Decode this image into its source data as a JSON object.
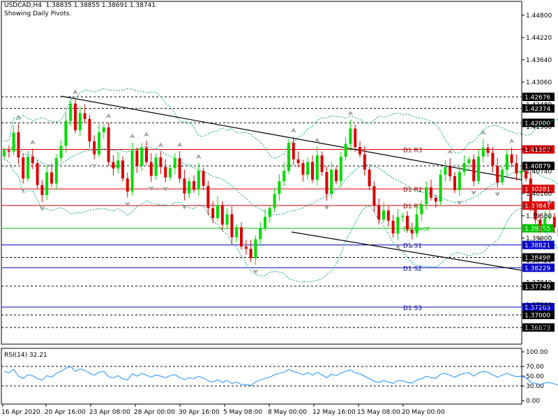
{
  "header": {
    "line1": "USDCAD,H4  1.38835 1.38855 1.38691 1.38741",
    "line2": "Showing Daily Pivots."
  },
  "colors": {
    "bull": "#00dc00",
    "bear": "#dc0000",
    "pivot": "#00c000",
    "resistance": "#dc0000",
    "support": "#0000c8",
    "bands": "#00a08c",
    "rsi": "#1e90ff",
    "frame": "#000000",
    "fractal": "#a0a0a0"
  },
  "chart_data": [
    {
      "type": "candlestick",
      "symbol": "USDCAD",
      "timeframe": "H4",
      "title": "USDCAD,H4  1.38835 1.38855 1.38691 1.38741",
      "subtitle": "Showing Daily Pivots.",
      "ylim": [
        1.3624,
        1.4516
      ],
      "y_ticks": [
        "1.44800",
        "1.44220",
        "1.43640",
        "1.43060",
        "1.42480",
        "1.41900",
        "1.41320",
        "1.40740",
        "1.40160",
        "1.39580",
        "1.39000",
        "1.38420",
        "1.37840",
        "1.37260",
        "1.36680"
      ],
      "x_ticks": [
        "16 Apr 2020",
        "20 Apr 16:00",
        "23 Apr 08:00",
        "28 Apr 00:00",
        "30 Apr 16:00",
        "5 May 08:00",
        "8 May 00:00",
        "12 May 16:00",
        "15 May 08:00",
        "20 May 00:00"
      ],
      "levels": [
        {
          "value": 1.42676,
          "text": "1.42676",
          "label": "",
          "kind": "dash"
        },
        {
          "value": 1.42374,
          "text": "1.42374",
          "label": "",
          "kind": "dash"
        },
        {
          "value": 1.42,
          "text": "1.42000",
          "label": "",
          "kind": "dash"
        },
        {
          "value": 1.41307,
          "text": "1.41307",
          "label": "D1  R3",
          "kind": "resistance"
        },
        {
          "value": 1.40879,
          "text": "1.40879",
          "label": "",
          "kind": "dash"
        },
        {
          "value": 1.40281,
          "text": "1.40281",
          "label": "D1  R2",
          "kind": "resistance"
        },
        {
          "value": 1.39847,
          "text": "1.39847",
          "label": "D1  R1",
          "kind": "resistance"
        },
        {
          "value": 1.39255,
          "text": "1.39255",
          "label": "D1  Pivot",
          "kind": "pivot"
        },
        {
          "value": 1.38821,
          "text": "1.38821",
          "label": "D1  S1",
          "kind": "support"
        },
        {
          "value": 1.38498,
          "text": "1.38498",
          "label": "",
          "kind": "dash"
        },
        {
          "value": 1.38229,
          "text": "1.38229",
          "label": "D1  S2",
          "kind": "support"
        },
        {
          "value": 1.37749,
          "text": "1.37749",
          "label": "",
          "kind": "dash"
        },
        {
          "value": 1.37203,
          "text": "1.37203",
          "label": "D1  S3",
          "kind": "support"
        },
        {
          "value": 1.37,
          "text": "1.37000",
          "label": "",
          "kind": "dash"
        },
        {
          "value": 1.36673,
          "text": "1.36673",
          "label": "",
          "kind": "dash"
        }
      ],
      "closes": [
        1.4128,
        1.4125,
        1.4175,
        1.411,
        1.4055,
        1.4112,
        1.4095,
        1.4038,
        1.4012,
        1.4071,
        1.4042,
        1.4108,
        1.414,
        1.4205,
        1.425,
        1.4181,
        1.4225,
        1.421,
        1.4152,
        1.4118,
        1.4175,
        1.4188,
        1.4098,
        1.4081,
        1.4102,
        1.4055,
        1.4021,
        1.4128,
        1.4088,
        1.4135,
        1.4098,
        1.4062,
        1.411,
        1.4085,
        1.4058,
        1.4082,
        1.4108,
        1.4055,
        1.4016,
        1.4048,
        1.4026,
        1.4075,
        1.4036,
        1.3978,
        1.3952,
        1.3986,
        1.3935,
        1.3962,
        1.3902,
        1.3928,
        1.3878,
        1.3872,
        1.3848,
        1.3897,
        1.3926,
        1.3955,
        1.3978,
        1.4015,
        1.4048,
        1.4075,
        1.4148,
        1.4105,
        1.4095,
        1.4065,
        1.4098,
        1.4052,
        1.4115,
        1.4072,
        1.4015,
        1.4078,
        1.4048,
        1.4112,
        1.4145,
        1.4185,
        1.4137,
        1.4118,
        1.4078,
        1.4035,
        1.3985,
        1.3948,
        1.3972,
        1.3945,
        1.3912,
        1.3955,
        1.3958,
        1.3922,
        1.3912,
        1.3962,
        1.3988,
        1.4032,
        1.4005,
        1.3995,
        1.4065,
        1.4085,
        1.4061,
        1.4025,
        1.4072,
        1.4095,
        1.4105,
        1.4048,
        1.4112,
        1.4135,
        1.4122,
        1.4088,
        1.4045,
        1.4078,
        1.4118,
        1.4095,
        1.4068,
        1.4075,
        1.4055,
        1.3985,
        1.3948,
        1.3932,
        1.3952,
        1.3955,
        1.3928,
        1.3905,
        1.3945,
        1.3955,
        1.3915,
        1.3874
      ],
      "rsi": {
        "label": "RSI(14) 32.21",
        "period": 14,
        "last": 32.21,
        "ylim": [
          0,
          100
        ],
        "levels": [
          70,
          30
        ],
        "ticks": [
          "100.00",
          "70.00",
          "50.00",
          "30.00",
          "0.00"
        ],
        "values": [
          60,
          57,
          64,
          50,
          45,
          53,
          51,
          45,
          42,
          51,
          48,
          56,
          60,
          66,
          70,
          60,
          65,
          62,
          56,
          52,
          58,
          60,
          49,
          47,
          51,
          45,
          42,
          55,
          50,
          56,
          52,
          48,
          53,
          50,
          47,
          51,
          53,
          47,
          43,
          47,
          45,
          50,
          46,
          41,
          38,
          43,
          37,
          41,
          35,
          38,
          33,
          33,
          31,
          38,
          42,
          46,
          48,
          53,
          56,
          58,
          64,
          59,
          57,
          53,
          57,
          52,
          58,
          53,
          47,
          54,
          51,
          57,
          60,
          63,
          57,
          55,
          50,
          45,
          40,
          37,
          41,
          38,
          35,
          41,
          41,
          37,
          36,
          42,
          45,
          50,
          47,
          46,
          54,
          56,
          52,
          48,
          53,
          56,
          57,
          50,
          57,
          60,
          58,
          53,
          48,
          52,
          56,
          52,
          49,
          50,
          47,
          38,
          35,
          33,
          36,
          37,
          34,
          32,
          37,
          38,
          34,
          32
        ]
      }
    }
  ]
}
